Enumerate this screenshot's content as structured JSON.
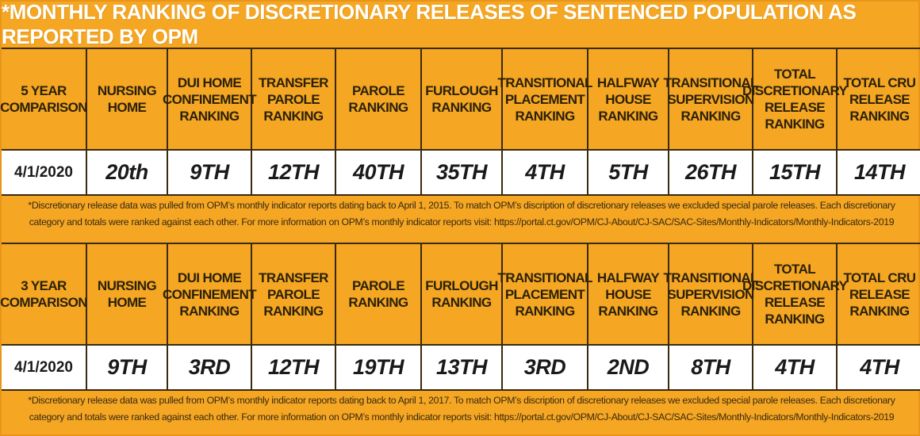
{
  "title": "*MONTHLY RANKING OF DISCRETIONARY RELEASES OF SENTENCED POPULATION AS REPORTED BY OPM",
  "colors": {
    "background": "#f5a623",
    "title_text": "#ffffff",
    "cell_text": "#2b2109",
    "value_bg": "#ffffff"
  },
  "tables": [
    {
      "headers": [
        "5 YEAR COMPARISON",
        "NURSING HOME",
        "DUI HOME CONFINEMENT RANKING",
        "TRANSFER PAROLE RANKING",
        "PAROLE RANKING",
        "FURLOUGH RANKING",
        "TRANSITIONAL PLACEMENT RANKING",
        "HALFWAY HOUSE RANKING",
        "TRANSITIONAL SUPERVISION RANKING",
        "TOTAL DISCRETIONARY RELEASE RANKING",
        "TOTAL CRU RELEASE RANKING"
      ],
      "values": [
        "4/1/2020",
        "20th",
        "9TH",
        "12TH",
        "40TH",
        "35TH",
        "4TH",
        "5TH",
        "26TH",
        "15TH",
        "14TH"
      ],
      "note": "*Discretionary release data was pulled from OPM’s monthly indicator reports dating back to April 1, 2015. To match OPM’s discription of discretionary releases we excluded special parole releases. Each discretionary category and totals were ranked against each other. For more information on OPM’s monthly indicator reports visit: https://portal.ct.gov/OPM/CJ-About/CJ-SAC/SAC-Sites/Monthly-Indicators/Monthly-Indicators-2019"
    },
    {
      "headers": [
        "3 YEAR COMPARISON",
        "NURSING HOME",
        "DUI HOME CONFINEMENT RANKING",
        "TRANSFER PAROLE RANKING",
        "PAROLE RANKING",
        "FURLOUGH RANKING",
        "TRANSITIONAL PLACEMENT RANKING",
        "HALFWAY HOUSE RANKING",
        "TRANSITIONAL SUPERVISION RANKING",
        "TOTAL DISCRETIONARY RELEASE RANKING",
        "TOTAL CRU RELEASE RANKING"
      ],
      "values": [
        "4/1/2020",
        "9TH",
        "3RD",
        "12TH",
        "19TH",
        "13TH",
        "3RD",
        "2ND",
        "8TH",
        "4TH",
        "4TH"
      ],
      "note": "*Discretionary release data was pulled from OPM’s monthly indicator reports dating back to April 1, 2017. To match OPM’s discription of discretionary releases we excluded special parole releases. Each discretionary category and totals were ranked against each other. For more information on OPM’s monthly indicator reports visit: https://portal.ct.gov/OPM/CJ-About/CJ-SAC/SAC-Sites/Monthly-Indicators/Monthly-Indicators-2019"
    }
  ]
}
